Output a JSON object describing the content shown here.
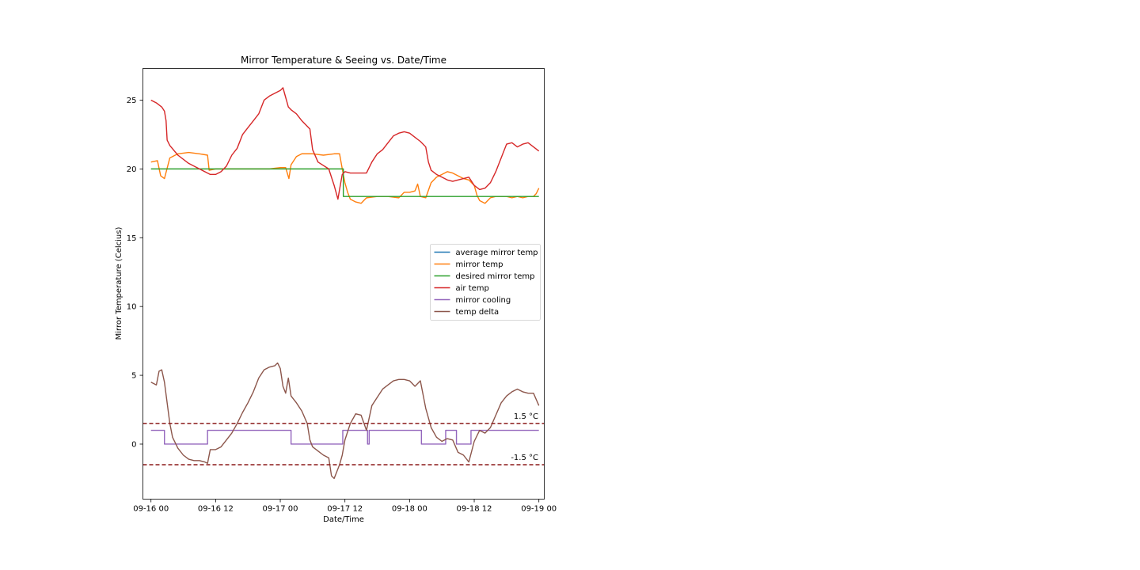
{
  "chart_data": {
    "type": "line",
    "title": "Mirror Temperature & Seeing vs. Date/Time",
    "xlabel": "Date/Time",
    "ylabel": "Mirror Temperature (Celcius)",
    "x_unit": "hours",
    "xlim": [
      -1.5,
      73
    ],
    "ylim": [
      -4,
      27.3
    ],
    "x_ticks": [
      {
        "v": 0,
        "label": "09-16 00"
      },
      {
        "v": 12,
        "label": "09-16 12"
      },
      {
        "v": 24,
        "label": "09-17 00"
      },
      {
        "v": 36,
        "label": "09-17 12"
      },
      {
        "v": 48,
        "label": "09-18 00"
      },
      {
        "v": 60,
        "label": "09-18 12"
      },
      {
        "v": 72,
        "label": "09-19 00"
      }
    ],
    "y_ticks": [
      {
        "v": 0,
        "label": "0"
      },
      {
        "v": 5,
        "label": "5"
      },
      {
        "v": 10,
        "label": "10"
      },
      {
        "v": 15,
        "label": "15"
      },
      {
        "v": 20,
        "label": "20"
      },
      {
        "v": 25,
        "label": "25"
      }
    ],
    "legend_position": "center-right",
    "series": [
      {
        "name": "average mirror temp",
        "color": "#1f77b4",
        "x": [],
        "y": []
      },
      {
        "name": "mirror temp",
        "color": "#ff7f0e",
        "x": [
          0,
          1.2,
          1.8,
          2.5,
          3.5,
          5,
          7,
          9,
          10.5,
          10.8,
          12,
          14,
          16,
          18,
          20,
          22,
          24,
          25,
          25.6,
          26,
          27,
          28,
          30,
          32,
          34,
          35,
          35.6,
          36,
          36.5,
          37,
          38,
          39,
          40,
          42,
          44,
          46,
          47,
          48,
          49,
          49.5,
          50,
          51,
          52,
          53,
          54,
          55,
          56,
          57,
          58,
          59,
          60,
          60.5,
          61,
          62,
          63,
          64,
          65,
          66,
          67,
          68,
          69,
          70,
          71,
          71.5,
          72
        ],
        "y": [
          20.5,
          20.6,
          19.5,
          19.3,
          20.8,
          21.1,
          21.2,
          21.1,
          21,
          19.9,
          20,
          20,
          20,
          20,
          20,
          20,
          20.1,
          20.1,
          19.3,
          20.3,
          20.9,
          21.1,
          21.1,
          21,
          21.1,
          21.1,
          19.8,
          19,
          18.3,
          17.8,
          17.6,
          17.5,
          17.9,
          18,
          18,
          17.9,
          18.3,
          18.3,
          18.4,
          18.9,
          18,
          17.9,
          19,
          19.4,
          19.6,
          19.8,
          19.7,
          19.5,
          19.3,
          19.2,
          18.8,
          18.1,
          17.7,
          17.5,
          17.9,
          18,
          18,
          18,
          17.9,
          18,
          17.9,
          18,
          18,
          18.2,
          18.6
        ]
      },
      {
        "name": "desired mirror temp",
        "color": "#2ca02c",
        "x": [
          0,
          35.7,
          35.7,
          72
        ],
        "y": [
          20,
          20,
          18,
          18
        ]
      },
      {
        "name": "air temp",
        "color": "#d62728",
        "x": [
          0,
          1,
          2,
          2.5,
          2.8,
          3,
          3.5,
          5,
          7,
          9,
          11,
          12,
          13,
          14,
          15,
          16,
          17,
          18,
          19,
          20,
          21,
          22,
          23,
          24,
          24.5,
          25,
          25.5,
          26,
          27,
          28,
          29,
          29.5,
          30,
          31,
          33,
          34,
          34.7,
          35,
          35.5,
          36,
          37,
          38,
          39,
          40,
          41,
          42,
          43,
          44,
          45,
          46,
          47,
          48,
          49,
          50,
          51,
          51.5,
          52,
          53,
          54,
          55,
          56,
          57,
          58,
          59,
          60,
          61,
          62,
          63,
          64,
          65,
          66,
          67,
          68,
          69,
          70,
          71,
          72
        ],
        "y": [
          25,
          24.8,
          24.5,
          24.2,
          23.5,
          22.1,
          21.7,
          21,
          20.4,
          20,
          19.6,
          19.6,
          19.8,
          20.2,
          21,
          21.5,
          22.5,
          23,
          23.5,
          24,
          25,
          25.3,
          25.5,
          25.7,
          25.9,
          25.2,
          24.5,
          24.3,
          24,
          23.5,
          23.1,
          22.9,
          21.4,
          20.5,
          20,
          18.8,
          17.8,
          18.5,
          19.6,
          19.8,
          19.7,
          19.7,
          19.7,
          19.7,
          20.5,
          21.1,
          21.4,
          21.9,
          22.4,
          22.6,
          22.7,
          22.6,
          22.3,
          22,
          21.6,
          20.5,
          19.9,
          19.6,
          19.4,
          19.2,
          19.1,
          19.2,
          19.3,
          19.4,
          18.8,
          18.5,
          18.6,
          19,
          19.8,
          20.8,
          21.8,
          21.9,
          21.6,
          21.8,
          21.9,
          21.6,
          21.3
        ]
      },
      {
        "name": "mirror cooling",
        "color": "#9467bd",
        "x": [
          0,
          2.5,
          2.5,
          10.5,
          10.5,
          26,
          26,
          35.6,
          35.6,
          40.2,
          40.2,
          40.5,
          40.5,
          50.2,
          50.2,
          54.7,
          54.7,
          56.7,
          56.7,
          59.4,
          59.4,
          72
        ],
        "y": [
          1,
          1,
          0,
          0,
          1,
          1,
          0,
          0,
          1,
          1,
          0,
          0,
          1,
          1,
          0,
          0,
          1,
          1,
          0,
          0,
          1,
          1
        ]
      },
      {
        "name": "temp delta",
        "color": "#8c564b",
        "x": [
          0,
          1,
          1.5,
          2,
          2.5,
          3,
          3.5,
          4,
          5,
          6,
          7,
          8,
          9,
          10,
          10.5,
          11,
          12,
          13,
          14,
          15,
          16,
          17,
          18,
          19,
          20,
          21,
          22,
          23,
          23.5,
          24,
          24.5,
          25,
          25.5,
          26,
          27,
          28,
          29,
          29.5,
          30,
          31,
          32,
          33,
          33.5,
          34,
          35,
          35.5,
          36,
          37,
          38,
          39,
          40,
          41,
          42,
          43,
          44,
          45,
          46,
          47,
          48,
          49,
          50,
          51,
          52,
          53,
          54,
          55,
          56,
          57,
          58,
          59,
          60,
          61,
          62,
          63,
          64,
          65,
          66,
          67,
          68,
          69,
          70,
          71,
          72
        ],
        "y": [
          4.5,
          4.3,
          5.3,
          5.4,
          4.5,
          3,
          1.5,
          0.5,
          -0.3,
          -0.8,
          -1.1,
          -1.2,
          -1.2,
          -1.3,
          -1.4,
          -0.4,
          -0.4,
          -0.2,
          0.3,
          0.8,
          1.5,
          2.3,
          3,
          3.8,
          4.8,
          5.4,
          5.6,
          5.7,
          5.9,
          5.5,
          4.2,
          3.7,
          4.8,
          3.5,
          3,
          2.4,
          1.5,
          0.3,
          -0.2,
          -0.5,
          -0.8,
          -1,
          -2.3,
          -2.5,
          -1.5,
          -0.8,
          0.3,
          1.5,
          2.2,
          2.1,
          1,
          2.8,
          3.4,
          4,
          4.3,
          4.6,
          4.7,
          4.7,
          4.6,
          4.2,
          4.6,
          2.6,
          1.2,
          0.5,
          0.2,
          0.4,
          0.3,
          -0.6,
          -0.8,
          -1.3,
          0.2,
          1,
          0.8,
          1.2,
          2.1,
          3,
          3.5,
          3.8,
          4,
          3.8,
          3.7,
          3.7,
          2.8
        ]
      }
    ],
    "reference_lines": [
      {
        "y": 1.5,
        "label": "1.5 °C",
        "color": "#8b1a1a"
      },
      {
        "y": -1.5,
        "label": "-1.5 °C",
        "color": "#8b1a1a"
      }
    ]
  }
}
